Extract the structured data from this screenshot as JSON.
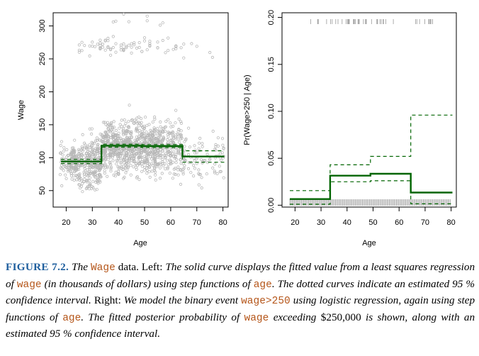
{
  "chart_data": [
    {
      "type": "scatter",
      "panel": "left",
      "xlabel": "Age",
      "ylabel": "Wage",
      "xlim": [
        15,
        82
      ],
      "ylim": [
        25,
        320
      ],
      "xticks": [
        20,
        30,
        40,
        50,
        60,
        70,
        80
      ],
      "yticks": [
        50,
        100,
        150,
        200,
        250,
        300
      ],
      "fit_step": {
        "breaks": [
          18,
          33.5,
          49,
          64.5,
          80.5
        ],
        "values": [
          94.2,
          118.2,
          117.6,
          101.8
        ]
      },
      "ci_upper": {
        "breaks": [
          18,
          33.5,
          49,
          64.5,
          80.5
        ],
        "values": [
          97.5,
          120.5,
          120.0,
          110.5
        ]
      },
      "ci_lower": {
        "breaks": [
          18,
          33.5,
          49,
          64.5,
          80.5
        ],
        "values": [
          91.0,
          116.0,
          115.2,
          93.0
        ]
      }
    },
    {
      "type": "line",
      "panel": "right",
      "xlabel": "Age",
      "ylabel": "Pr(Wage>250 | Age)",
      "xlim": [
        15,
        82
      ],
      "ylim": [
        -0.002,
        0.205
      ],
      "xticks": [
        20,
        30,
        40,
        50,
        60,
        70,
        80
      ],
      "yticks": [
        0.0,
        0.05,
        0.1,
        0.15,
        0.2
      ],
      "ytick_labels": [
        "0.00",
        "0.05",
        "0.10",
        "0.15",
        "0.20"
      ],
      "fit_step": {
        "breaks": [
          18,
          33.5,
          49,
          64.5,
          80.5
        ],
        "values": [
          0.0065,
          0.0315,
          0.0335,
          0.0135
        ]
      },
      "ci_upper": {
        "breaks": [
          18,
          33.5,
          49,
          64.5,
          80.5
        ],
        "values": [
          0.0155,
          0.043,
          0.052,
          0.096
        ]
      },
      "ci_lower": {
        "breaks": [
          18,
          33.5,
          49,
          64.5,
          80.5
        ],
        "values": [
          0.001,
          0.025,
          0.026,
          0.0015
        ]
      }
    }
  ],
  "colors": {
    "fit": "#006400",
    "points": "#b8b8b8",
    "caption_label": "#1f5f9e",
    "code": "#b5561a"
  },
  "caption": {
    "label": "FIGURE 7.2.",
    "s1": "The",
    "c1": "Wage",
    "s2": "data.",
    "s3": "Left:",
    "s4": "The solid curve displays the fitted value from a least squares regression of",
    "c2": "wage",
    "s5": "(in thousands of dollars) using step functions of",
    "c3": "age",
    "s6": ". The dotted curves indicate an estimated 95 % confidence interval.",
    "s7": "Right:",
    "s8": "We model the binary event",
    "c4": "wage>250",
    "s9": "using logistic regression, again using step functions of",
    "c5": "age",
    "s10": ". The fitted posterior probability of",
    "c6": "wage",
    "s11": "exceeding",
    "s12": "$250,000",
    "s13": "is shown, along with an estimated 95 % confidence interval."
  }
}
